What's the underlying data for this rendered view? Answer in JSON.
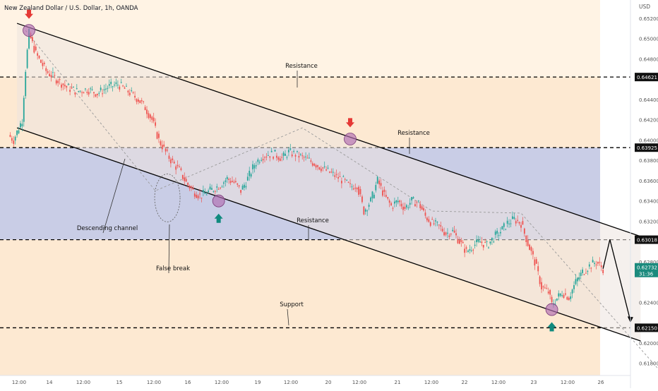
{
  "header": {
    "symbol_title": "New Zealand Dollar / U.S. Dollar, 1h, OANDA",
    "currency": "USD"
  },
  "colors": {
    "bull": "#26a69a",
    "bear": "#ef5350",
    "zone_blue": "#c9cde6",
    "zone_orange": "#fde9d2",
    "channel_fill": "#ece3de",
    "marker": "#b06cb0",
    "arrow_down": "#e53935",
    "arrow_up": "#0f8a7e",
    "line": "#000000",
    "price_tag": "#1b8a7d"
  },
  "chart_data": {
    "type": "candlestick",
    "title": "New Zealand Dollar / U.S. Dollar, 1h, OANDA",
    "y_axis_label": "USD",
    "ylim": [
      0.6168,
      0.6538
    ],
    "grid": false,
    "x_ticks": [
      "12:00",
      "14",
      "12:00",
      "15",
      "12:00",
      "16",
      "12:00",
      "19",
      "12:00",
      "20",
      "12:00",
      "21",
      "12:00",
      "22",
      "12:00",
      "23",
      "12:00",
      "26"
    ],
    "y_ticks": [
      "0.65200",
      "0.65000",
      "0.64800",
      "0.64600",
      "0.64400",
      "0.64200",
      "0.64000",
      "0.63800",
      "0.63600",
      "0.63400",
      "0.63200",
      "0.62800",
      "0.62400",
      "0.62000",
      "0.61800"
    ],
    "levels": [
      {
        "value": 0.64621,
        "label": "0.64621"
      },
      {
        "value": 0.63925,
        "label": "0.63925"
      },
      {
        "value": 0.63018,
        "label": "0.63018"
      },
      {
        "value": 0.6215,
        "label": "0.62150"
      }
    ],
    "last_price": {
      "value": 0.62732,
      "label": "0.62732",
      "countdown": "31:36"
    },
    "annotations": [
      "Resistance",
      "Resistance",
      "Resistance",
      "Support",
      "Descending channel",
      "False break"
    ],
    "close_path": [
      [
        0,
        0.6405
      ],
      [
        3,
        0.64
      ],
      [
        8,
        0.642
      ],
      [
        10,
        0.647
      ],
      [
        12,
        0.6505
      ],
      [
        16,
        0.6485
      ],
      [
        22,
        0.6468
      ],
      [
        28,
        0.646
      ],
      [
        34,
        0.6452
      ],
      [
        40,
        0.6448
      ],
      [
        46,
        0.645
      ],
      [
        52,
        0.6446
      ],
      [
        58,
        0.6452
      ],
      [
        64,
        0.6455
      ],
      [
        70,
        0.6448
      ],
      [
        76,
        0.644
      ],
      [
        80,
        0.6432
      ],
      [
        84,
        0.642
      ],
      [
        88,
        0.64
      ],
      [
        92,
        0.6388
      ],
      [
        96,
        0.6378
      ],
      [
        100,
        0.637
      ],
      [
        104,
        0.6358
      ],
      [
        108,
        0.635
      ],
      [
        112,
        0.6345
      ],
      [
        116,
        0.6348
      ],
      [
        120,
        0.6352
      ],
      [
        124,
        0.6356
      ],
      [
        128,
        0.6362
      ],
      [
        132,
        0.6358
      ],
      [
        136,
        0.635
      ],
      [
        140,
        0.6362
      ],
      [
        144,
        0.6376
      ],
      [
        148,
        0.6384
      ],
      [
        152,
        0.6386
      ],
      [
        156,
        0.6386
      ],
      [
        160,
        0.6382
      ],
      [
        164,
        0.6388
      ],
      [
        168,
        0.6386
      ],
      [
        172,
        0.6383
      ],
      [
        176,
        0.638
      ],
      [
        180,
        0.6376
      ],
      [
        184,
        0.6372
      ],
      [
        188,
        0.6368
      ],
      [
        192,
        0.6364
      ],
      [
        196,
        0.636
      ],
      [
        200,
        0.6354
      ],
      [
        204,
        0.6356
      ],
      [
        208,
        0.633
      ],
      [
        212,
        0.634
      ],
      [
        216,
        0.636
      ],
      [
        220,
        0.6345
      ],
      [
        224,
        0.6335
      ],
      [
        228,
        0.634
      ],
      [
        232,
        0.6333
      ],
      [
        236,
        0.634
      ],
      [
        240,
        0.6338
      ],
      [
        244,
        0.6325
      ],
      [
        248,
        0.6318
      ],
      [
        252,
        0.6315
      ],
      [
        256,
        0.6308
      ],
      [
        260,
        0.631
      ],
      [
        264,
        0.63
      ],
      [
        268,
        0.629
      ],
      [
        272,
        0.6296
      ],
      [
        276,
        0.63
      ],
      [
        280,
        0.6296
      ],
      [
        284,
        0.6304
      ],
      [
        288,
        0.631
      ],
      [
        292,
        0.6318
      ],
      [
        296,
        0.6322
      ],
      [
        300,
        0.6318
      ],
      [
        304,
        0.6298
      ],
      [
        308,
        0.628
      ],
      [
        312,
        0.6255
      ],
      [
        316,
        0.625
      ],
      [
        318,
        0.6238
      ],
      [
        320,
        0.6242
      ],
      [
        324,
        0.625
      ],
      [
        328,
        0.6245
      ],
      [
        332,
        0.626
      ],
      [
        336,
        0.627
      ],
      [
        340,
        0.6276
      ],
      [
        344,
        0.628
      ],
      [
        348,
        0.62732
      ]
    ],
    "drawings": {
      "channel_upper": [
        [
          5,
          0.6515
        ],
        [
          370,
          0.6305
        ]
      ],
      "channel_lower": [
        [
          5,
          0.6412
        ],
        [
          370,
          0.6202
        ]
      ],
      "forecast_path": [
        [
          348,
          0.62732
        ],
        [
          352,
          0.6302
        ],
        [
          364,
          0.6222
        ]
      ],
      "dotted_guides": [
        [
          [
            10,
            0.6508
          ],
          [
            86,
            0.635
          ],
          [
            172,
            0.6412
          ],
          [
            248,
            0.633
          ],
          [
            300,
            0.6328
          ],
          [
            380,
            0.6175
          ]
        ]
      ],
      "markers": [
        [
          12,
          0.6508
        ],
        [
          200,
          0.6401
        ],
        [
          123,
          0.634
        ],
        [
          318,
          0.6233
        ]
      ],
      "arrows_down": [
        [
          12,
          0.6523
        ],
        [
          200,
          0.6416
        ]
      ],
      "arrows_up": [
        [
          123,
          0.6324
        ],
        [
          318,
          0.6217
        ]
      ]
    }
  }
}
